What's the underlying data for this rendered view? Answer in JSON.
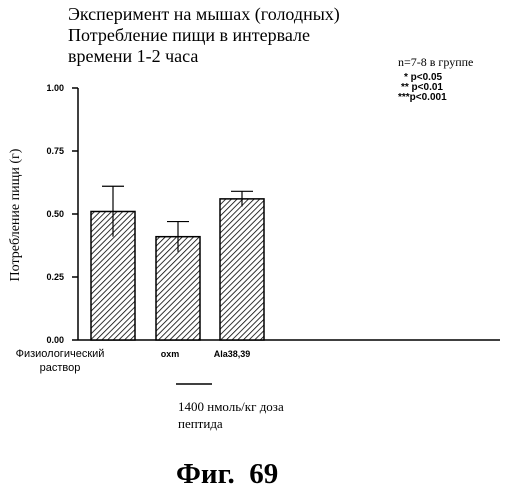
{
  "title": [
    "Эксперимент на мышах (голодных)",
    "Потребление пищи в интервале",
    "времени 1-2 часа"
  ],
  "legend_note": {
    "n_text": "n=7-8 в группе",
    "significance": [
      "* p<0.05",
      "** p<0.01",
      "***p<0.001"
    ]
  },
  "group_label": [
    "1400 нмоль/кг доза",
    "пептида"
  ],
  "figure_caption": "Фиг.  69",
  "colors": {
    "ink": "#000000",
    "background": "#ffffff"
  },
  "chart_data": {
    "type": "bar",
    "categories": [
      {
        "lines": [
          "Физиологический",
          "раствор"
        ]
      },
      {
        "lines": [
          "oxm"
        ]
      },
      {
        "lines": [
          "Ala38,39"
        ]
      }
    ],
    "values": [
      0.51,
      0.41,
      0.56
    ],
    "errors": [
      0.1,
      0.06,
      0.03
    ],
    "ylabel": "Потребление пищи (г)",
    "ylim": [
      0,
      1.0
    ],
    "yticks": [
      {
        "value": 0.0,
        "label": "0.00"
      },
      {
        "value": 0.25,
        "label": "0.25"
      },
      {
        "value": 0.5,
        "label": "0.50"
      },
      {
        "value": 0.75,
        "label": "0.75"
      },
      {
        "value": 1.0,
        "label": "1.00"
      }
    ],
    "bar_fill": "hatched",
    "grid": false,
    "legend": "top-right"
  }
}
